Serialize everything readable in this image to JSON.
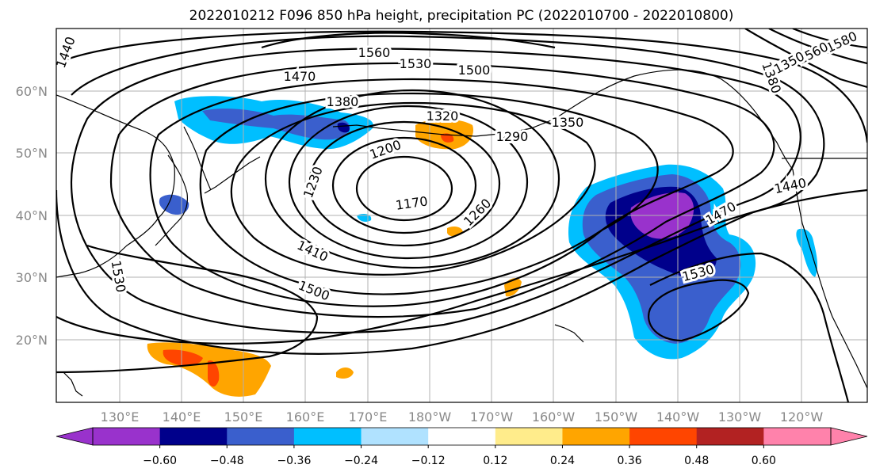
{
  "title": "2022010212 F096 850 hPa height, precipitation PC (2022010700 - 2022010800)",
  "map": {
    "lon_labels": [
      "130°E",
      "140°E",
      "150°E",
      "160°E",
      "170°E",
      "180°W",
      "170°W",
      "160°W",
      "150°W",
      "140°W",
      "130°W",
      "120°W"
    ],
    "lat_labels": [
      "60°N",
      "50°N",
      "40°N",
      "30°N",
      "20°N"
    ],
    "grid": true,
    "height_contour_labels": [
      "1560",
      "1530",
      "1500",
      "1470",
      "1440",
      "1380",
      "1350",
      "1320",
      "1290",
      "1200",
      "1230",
      "1170",
      "1260",
      "1410",
      "1500",
      "1530",
      "1470",
      "1440",
      "1530",
      "1580",
      "1560",
      "1380",
      "1350",
      "1440"
    ]
  },
  "colorbar": {
    "ticks": [
      "−0.60",
      "−0.48",
      "−0.36",
      "−0.24",
      "−0.12",
      "0.12",
      "0.24",
      "0.36",
      "0.48",
      "0.60"
    ],
    "colors": [
      "#9932cc",
      "#00008b",
      "#3a5fcd",
      "#00bfff",
      "#b0e2ff",
      "#ffffff",
      "#ffec8b",
      "#ffa500",
      "#ff4500",
      "#b22222",
      "#ff82ab",
      "#ff82ab"
    ]
  }
}
